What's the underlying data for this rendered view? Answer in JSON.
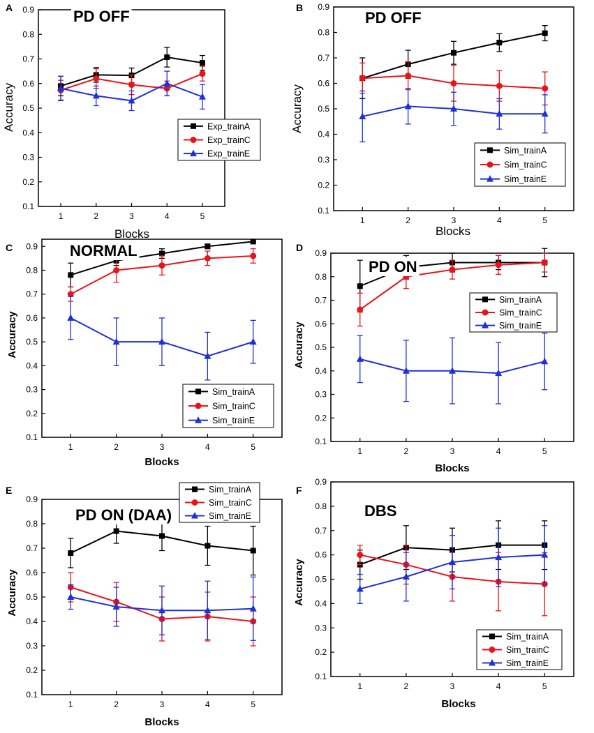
{
  "chart_data": [
    {
      "type": "line",
      "panel_label": "A",
      "title": "PD OFF",
      "xlabel": "Blocks",
      "ylabel": "Accuracy",
      "categories": [
        "1",
        "2",
        "3",
        "4",
        "5"
      ],
      "ylim": [
        0.1,
        0.9
      ],
      "yticks": [
        "0.1",
        "0.2",
        "0.3",
        "0.4",
        "0.5",
        "0.6",
        "0.7",
        "0.8",
        "0.9"
      ],
      "legend_position": "middle-right",
      "series": [
        {
          "name": "Exp_trainA",
          "color": "#000000",
          "marker": "square",
          "values": [
            0.59,
            0.635,
            0.633,
            0.707,
            0.684
          ],
          "errors": [
            0.04,
            0.03,
            0.03,
            0.04,
            0.03
          ]
        },
        {
          "name": "Exp_trainC",
          "color": "#e8141b",
          "marker": "circle",
          "values": [
            0.573,
            0.62,
            0.595,
            0.58,
            0.64
          ],
          "errors": [
            0.04,
            0.04,
            0.04,
            0.03,
            0.03
          ]
        },
        {
          "name": "Exp_trainE",
          "color": "#1f30d8",
          "marker": "triangle",
          "values": [
            0.58,
            0.55,
            0.53,
            0.6,
            0.546
          ],
          "errors": [
            0.05,
            0.04,
            0.04,
            0.05,
            0.05
          ]
        }
      ]
    },
    {
      "type": "line",
      "panel_label": "B",
      "title": "PD OFF",
      "xlabel": "Blocks",
      "ylabel": "Accuracy",
      "categories": [
        "1",
        "2",
        "3",
        "4",
        "5"
      ],
      "ylim": [
        0.1,
        0.9
      ],
      "yticks": [
        "0.1",
        "0.2",
        "0.3",
        "0.4",
        "0.5",
        "0.6",
        "0.7",
        "0.8",
        "0.9"
      ],
      "legend_position": "bottom-right",
      "series": [
        {
          "name": "Sim_trainA",
          "color": "#000000",
          "marker": "square",
          "values": [
            0.62,
            0.675,
            0.72,
            0.76,
            0.797
          ],
          "errors": [
            0.08,
            0.055,
            0.045,
            0.035,
            0.03
          ]
        },
        {
          "name": "Sim_trainC",
          "color": "#e8141b",
          "marker": "circle",
          "values": [
            0.62,
            0.63,
            0.6,
            0.59,
            0.58
          ],
          "errors": [
            0.06,
            0.055,
            0.07,
            0.06,
            0.065
          ]
        },
        {
          "name": "Sim_trainE",
          "color": "#1f30d8",
          "marker": "triangle",
          "values": [
            0.47,
            0.51,
            0.5,
            0.48,
            0.48
          ],
          "errors": [
            0.1,
            0.07,
            0.065,
            0.06,
            0.075
          ]
        }
      ]
    },
    {
      "type": "line",
      "panel_label": "C",
      "title": "NORMAL",
      "xlabel": "Blocks",
      "ylabel": "Accuracy",
      "categories": [
        "1",
        "2",
        "3",
        "4",
        "5"
      ],
      "ylim": [
        0.1,
        0.93
      ],
      "yticks": [
        "0.1",
        "0.2",
        "0.3",
        "0.4",
        "0.5",
        "0.6",
        "0.7",
        "0.8",
        "0.9"
      ],
      "legend_position": "bottom-right",
      "series": [
        {
          "name": "Sim_trainA",
          "color": "#000000",
          "marker": "square",
          "values": [
            0.78,
            0.84,
            0.87,
            0.9,
            0.92
          ],
          "errors": [
            0.05,
            0.02,
            0.02,
            0.01,
            0.005
          ]
        },
        {
          "name": "Sim_trainC",
          "color": "#e8141b",
          "marker": "circle",
          "values": [
            0.7,
            0.8,
            0.82,
            0.85,
            0.86
          ],
          "errors": [
            0.03,
            0.05,
            0.04,
            0.03,
            0.03
          ]
        },
        {
          "name": "Sim_trainE",
          "color": "#1f30d8",
          "marker": "triangle",
          "values": [
            0.6,
            0.5,
            0.5,
            0.44,
            0.5
          ],
          "errors": [
            0.09,
            0.1,
            0.1,
            0.1,
            0.09
          ]
        }
      ]
    },
    {
      "type": "line",
      "panel_label": "D",
      "title": "PD ON",
      "xlabel": "Blocks",
      "ylabel": "Accuracy",
      "categories": [
        "1",
        "2",
        "3",
        "4",
        "5"
      ],
      "ylim": [
        0.1,
        0.9
      ],
      "yticks": [
        "0.1",
        "0.2",
        "0.3",
        "0.4",
        "0.5",
        "0.6",
        "0.7",
        "0.8",
        "0.9"
      ],
      "legend_position": "middle-right",
      "series": [
        {
          "name": "Sim_trainA",
          "color": "#000000",
          "marker": "square",
          "values": [
            0.76,
            0.84,
            0.86,
            0.86,
            0.86
          ],
          "errors": [
            0.11,
            0.05,
            0.04,
            0.03,
            0.06
          ]
        },
        {
          "name": "Sim_trainC",
          "color": "#e8141b",
          "marker": "circle",
          "values": [
            0.66,
            0.8,
            0.83,
            0.85,
            0.86
          ],
          "errors": [
            0.07,
            0.05,
            0.04,
            0.04,
            0.04
          ]
        },
        {
          "name": "Sim_trainE",
          "color": "#1f30d8",
          "marker": "triangle",
          "values": [
            0.45,
            0.4,
            0.4,
            0.39,
            0.44
          ],
          "errors": [
            0.1,
            0.13,
            0.14,
            0.13,
            0.12
          ]
        }
      ]
    },
    {
      "type": "line",
      "panel_label": "E",
      "title": "PD ON (DAA)",
      "xlabel": "Blocks",
      "ylabel": "Accuracy",
      "categories": [
        "1",
        "2",
        "3",
        "4",
        "5"
      ],
      "ylim": [
        0.1,
        0.9
      ],
      "yticks": [
        "0.1",
        "0.2",
        "0.3",
        "0.4",
        "0.5",
        "0.6",
        "0.7",
        "0.8",
        "0.9"
      ],
      "legend_position": "top-right",
      "series": [
        {
          "name": "Sim_trainA",
          "color": "#000000",
          "marker": "square",
          "values": [
            0.68,
            0.77,
            0.75,
            0.71,
            0.69
          ],
          "errors": [
            0.06,
            0.05,
            0.06,
            0.08,
            0.1
          ]
        },
        {
          "name": "Sim_trainC",
          "color": "#e8141b",
          "marker": "circle",
          "values": [
            0.54,
            0.48,
            0.41,
            0.42,
            0.4
          ],
          "errors": [
            0.06,
            0.08,
            0.09,
            0.1,
            0.1
          ]
        },
        {
          "name": "Sim_trainE",
          "color": "#1f30d8",
          "marker": "triangle",
          "values": [
            0.5,
            0.46,
            0.445,
            0.445,
            0.452
          ],
          "errors": [
            0.05,
            0.08,
            0.1,
            0.12,
            0.13
          ]
        }
      ]
    },
    {
      "type": "line",
      "panel_label": "F",
      "title": "DBS",
      "xlabel": "Blocks",
      "ylabel": "Accuracy",
      "categories": [
        "1",
        "2",
        "3",
        "4",
        "5"
      ],
      "ylim": [
        0.1,
        0.9
      ],
      "yticks": [
        "0.1",
        "0.2",
        "0.3",
        "0.4",
        "0.5",
        "0.6",
        "0.7",
        "0.8",
        "0.9"
      ],
      "legend_position": "bottom-right",
      "series": [
        {
          "name": "Sim_trainA",
          "color": "#000000",
          "marker": "square",
          "values": [
            0.56,
            0.63,
            0.62,
            0.64,
            0.64
          ],
          "errors": [
            0.06,
            0.09,
            0.09,
            0.1,
            0.1
          ]
        },
        {
          "name": "Sim_trainC",
          "color": "#e8141b",
          "marker": "circle",
          "values": [
            0.6,
            0.56,
            0.51,
            0.49,
            0.48
          ],
          "errors": [
            0.04,
            0.08,
            0.1,
            0.12,
            0.13
          ]
        },
        {
          "name": "Sim_trainE",
          "color": "#1f30d8",
          "marker": "triangle",
          "values": [
            0.46,
            0.51,
            0.57,
            0.59,
            0.6
          ],
          "errors": [
            0.06,
            0.1,
            0.11,
            0.12,
            0.12
          ]
        }
      ]
    }
  ]
}
